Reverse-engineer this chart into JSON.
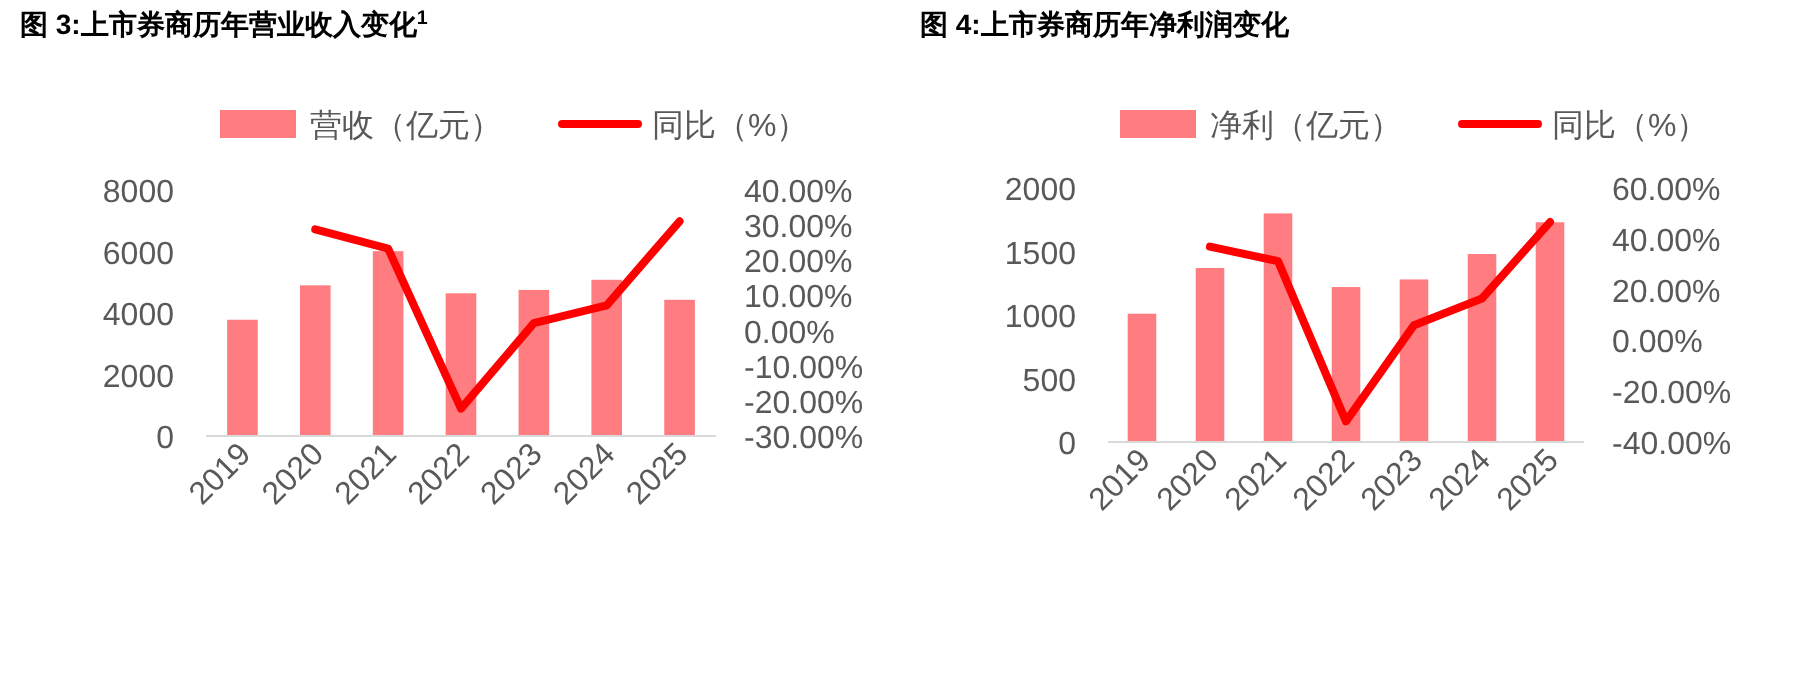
{
  "chart_data": [
    {
      "type": "bar",
      "title": "图 3:上市券商历年营业收入变化$^{1}$",
      "categories": [
        "2019",
        "2020",
        "2021",
        "2022",
        "2023",
        "2024",
        "2025"
      ],
      "legend": "top",
      "grid": false,
      "series": [
        {
          "name": "营收（亿元）",
          "color": "#ff7c80",
          "values": [
            3780,
            4900,
            6010,
            4640,
            4750,
            5080,
            4430
          ]
        },
        {
          "name": "同比（%）",
          "type": "line",
          "axis": "y2",
          "color": "#ff0000",
          "values": [
            null,
            28.8,
            23.3,
            -22.2,
            2.1,
            7.2,
            31.1
          ]
        }
      ],
      "ylim": [
        0,
        8000
      ],
      "yticks": [
        0,
        2000,
        4000,
        6000,
        8000
      ],
      "y2lim": [
        -30,
        40
      ],
      "y2ticks": [
        {
          "value": -30,
          "label": "-30.00%"
        },
        {
          "value": -20,
          "label": "-20.00%"
        },
        {
          "value": -10,
          "label": "-10.00%"
        },
        {
          "value": 0,
          "label": "0.00%"
        },
        {
          "value": 10,
          "label": "10.00%"
        },
        {
          "value": 20,
          "label": "20.00%"
        },
        {
          "value": 30,
          "label": "30.00%"
        },
        {
          "value": 40,
          "label": "40.00%"
        }
      ]
    },
    {
      "type": "bar",
      "title": "图 4:上市券商历年净利润变化",
      "categories": [
        "2019",
        "2020",
        "2021",
        "2022",
        "2023",
        "2024",
        "2025"
      ],
      "legend": "top",
      "grid": false,
      "series": [
        {
          "name": "净利（亿元）",
          "color": "#ff7c80",
          "values": [
            1010,
            1370,
            1800,
            1220,
            1280,
            1480,
            1730
          ]
        },
        {
          "name": "同比（%）",
          "type": "line",
          "axis": "y2",
          "color": "#ff0000",
          "values": [
            null,
            36.9,
            31.2,
            -31.9,
            6.0,
            16.5,
            46.6
          ]
        }
      ],
      "ylim": [
        0,
        2000
      ],
      "yticks": [
        0,
        500,
        1000,
        1500,
        2000
      ],
      "y2lim": [
        -40,
        60
      ],
      "y2ticks": [
        {
          "value": -40,
          "label": "-40.00%"
        },
        {
          "value": -20,
          "label": "-20.00%"
        },
        {
          "value": 0,
          "label": "0.00%"
        },
        {
          "value": 20,
          "label": "20.00%"
        },
        {
          "value": 40,
          "label": "40.00%"
        },
        {
          "value": 60,
          "label": "60.00%"
        }
      ]
    }
  ]
}
